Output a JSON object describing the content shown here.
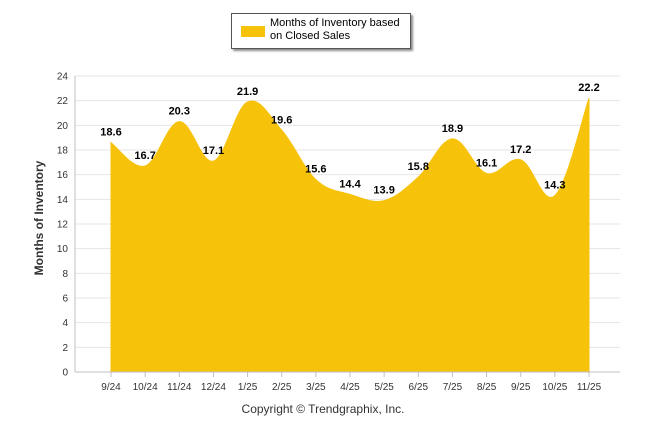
{
  "chart_data": {
    "type": "area",
    "title": "",
    "xlabel": "",
    "ylabel": "Months of Inventory",
    "ylim": [
      0,
      24
    ],
    "yticks": [
      0,
      2,
      4,
      6,
      8,
      10,
      12,
      14,
      16,
      18,
      20,
      22,
      24
    ],
    "grid": true,
    "legend_position": "top-center",
    "categories": [
      "9/24",
      "10/24",
      "11/24",
      "12/24",
      "1/25",
      "2/25",
      "3/25",
      "4/25",
      "5/25",
      "6/25",
      "7/25",
      "8/25",
      "9/25",
      "10/25",
      "11/25"
    ],
    "series": [
      {
        "name": "Months of Inventory based on Closed Sales",
        "values": [
          18.6,
          16.7,
          20.3,
          17.1,
          21.9,
          19.6,
          15.6,
          14.4,
          13.9,
          15.8,
          18.9,
          16.1,
          17.2,
          14.3,
          22.2
        ],
        "labels": [
          "18.6",
          "16.7",
          "20.3",
          "17.1",
          "21.9",
          "19.6",
          "15.6",
          "14.4",
          "13.9",
          "15.8",
          "18.9",
          "16.1",
          "17.2",
          "14.3",
          "22.2"
        ],
        "color": "#f7c20a"
      }
    ]
  },
  "legend": {
    "line1": "Months of Inventory based",
    "line2": "on Closed Sales",
    "color": "#f7c20a"
  },
  "footer": {
    "copyright": "Copyright © Trendgraphix, Inc."
  }
}
